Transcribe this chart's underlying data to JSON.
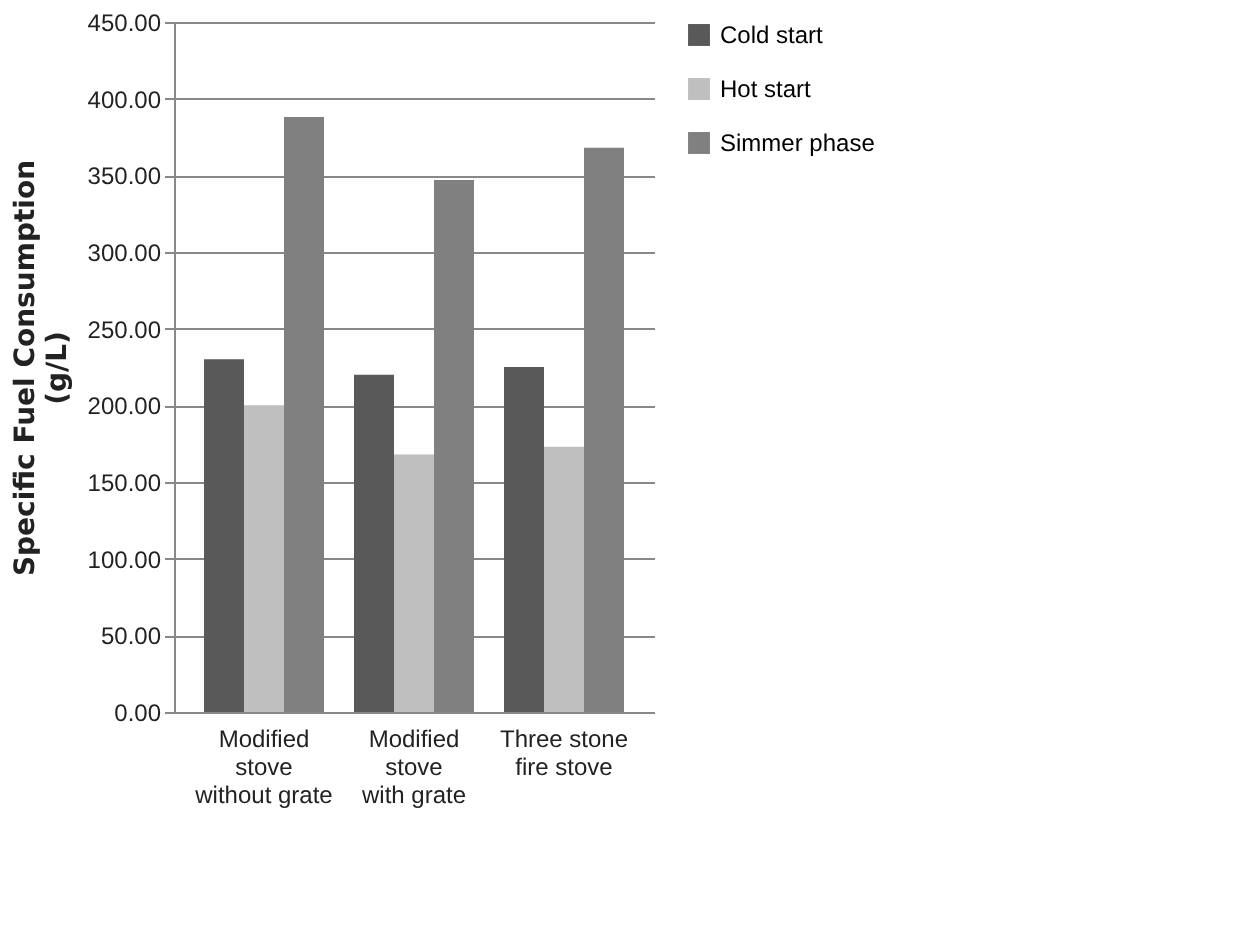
{
  "chart_data": {
    "type": "bar",
    "ylabel": "Specific Fuel Consumption\n(g/L)",
    "categories": [
      "Modified\nstove\nwithout grate",
      "Modified\nstove\nwith grate",
      "Three stone\nfire stove"
    ],
    "series": [
      {
        "name": "Cold start",
        "color": "#595959",
        "values": [
          230,
          220,
          225
        ]
      },
      {
        "name": "Hot start",
        "color": "#bfbfbf",
        "values": [
          200,
          168,
          173
        ]
      },
      {
        "name": "Simmer phase",
        "color": "#808080",
        "values": [
          388,
          347,
          368
        ]
      }
    ],
    "ylim": [
      0,
      450
    ],
    "yticks": [
      {
        "value": 0,
        "label": "0.00"
      },
      {
        "value": 50,
        "label": "50.00"
      },
      {
        "value": 100,
        "label": "100.00"
      },
      {
        "value": 150,
        "label": "150.00"
      },
      {
        "value": 200,
        "label": "200.00"
      },
      {
        "value": 250,
        "label": "250.00"
      },
      {
        "value": 300,
        "label": "300.00"
      },
      {
        "value": 350,
        "label": "350.00"
      },
      {
        "value": 400,
        "label": "400.00"
      },
      {
        "value": 450,
        "label": "450.00"
      }
    ],
    "grid": "y",
    "legend": "right"
  }
}
